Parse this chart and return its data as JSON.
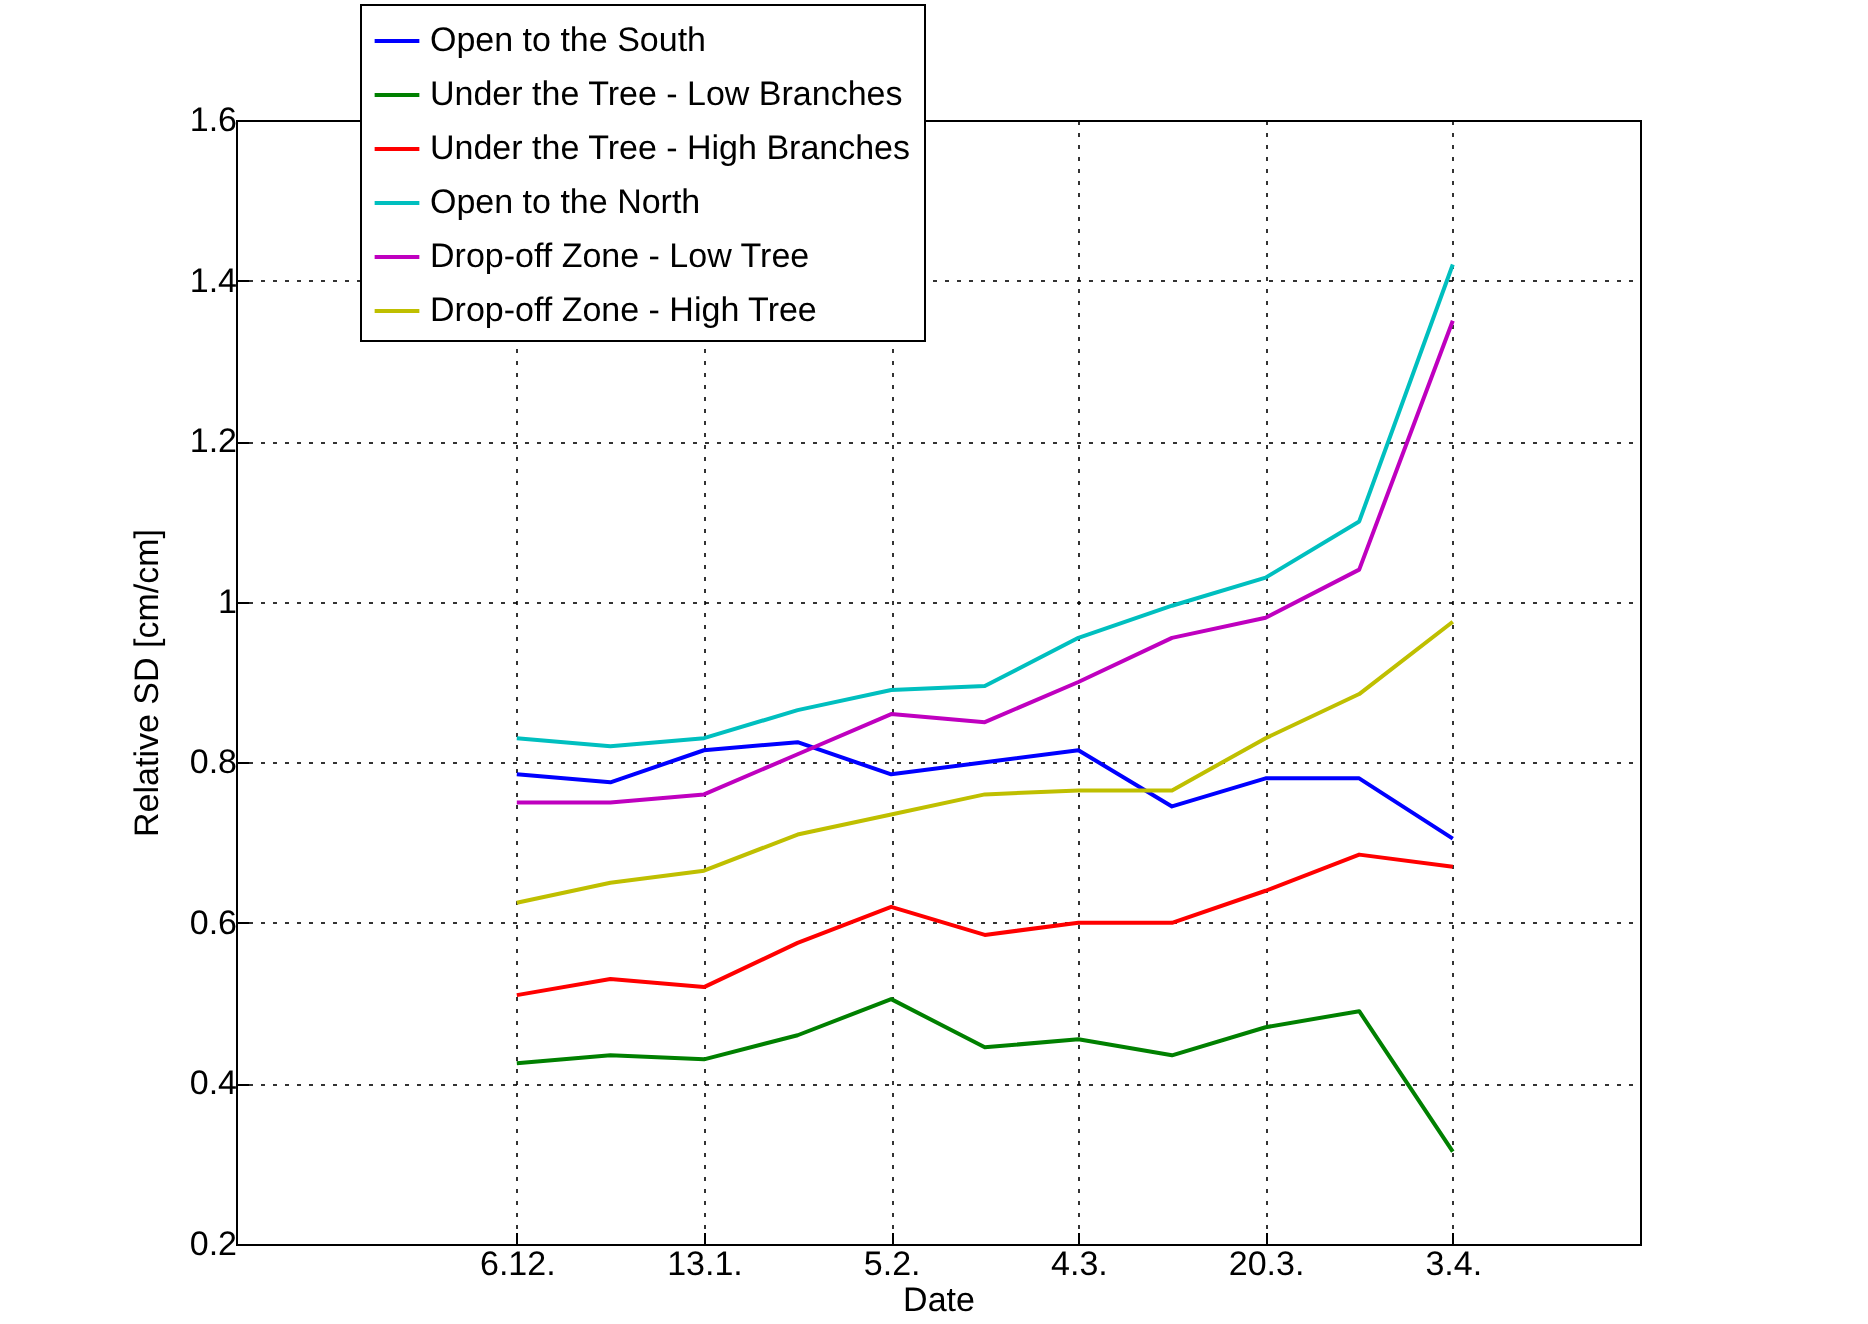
{
  "chart_data": {
    "type": "line",
    "xlabel": "Date",
    "ylabel": "Relative SD [cm/cm]",
    "categories": [
      "6.12.",
      null,
      "13.1.",
      null,
      "5.2.",
      null,
      "4.3.",
      null,
      "20.3.",
      null,
      "3.4."
    ],
    "ylim": [
      0.2,
      1.6
    ],
    "yticks": [
      0.2,
      0.4,
      0.6,
      0.8,
      1,
      1.2,
      1.4,
      1.6
    ],
    "grid": true,
    "legend": "top left",
    "line_style": "solid",
    "marker": "none",
    "series": [
      {
        "name": "Open to the South",
        "color": "#0000ff",
        "values": [
          0.785,
          0.775,
          0.815,
          0.825,
          0.785,
          0.8,
          0.815,
          0.745,
          0.78,
          0.78,
          0.705
        ]
      },
      {
        "name": "Under the Tree - Low Branches",
        "color": "#008000",
        "values": [
          0.425,
          0.435,
          0.43,
          0.46,
          0.505,
          0.445,
          0.455,
          0.435,
          0.47,
          0.49,
          0.315
        ]
      },
      {
        "name": "Under the Tree - High Branches",
        "color": "#ff0000",
        "values": [
          0.51,
          0.53,
          0.52,
          0.575,
          0.62,
          0.585,
          0.6,
          0.6,
          0.64,
          0.685,
          0.67
        ]
      },
      {
        "name": "Open to the North",
        "color": "#00bfbf",
        "values": [
          0.83,
          0.82,
          0.83,
          0.865,
          0.89,
          0.895,
          0.955,
          0.995,
          1.03,
          1.1,
          1.42
        ]
      },
      {
        "name": "Drop-off Zone - Low Tree",
        "color": "#bf00bf",
        "values": [
          0.75,
          0.75,
          0.76,
          0.81,
          0.86,
          0.85,
          0.9,
          0.955,
          0.98,
          1.04,
          1.35
        ]
      },
      {
        "name": "Drop-off Zone - High Tree",
        "color": "#bfbf00",
        "values": [
          0.625,
          0.65,
          0.665,
          0.71,
          0.735,
          0.76,
          0.765,
          0.765,
          0.83,
          0.885,
          0.975
        ]
      }
    ]
  }
}
